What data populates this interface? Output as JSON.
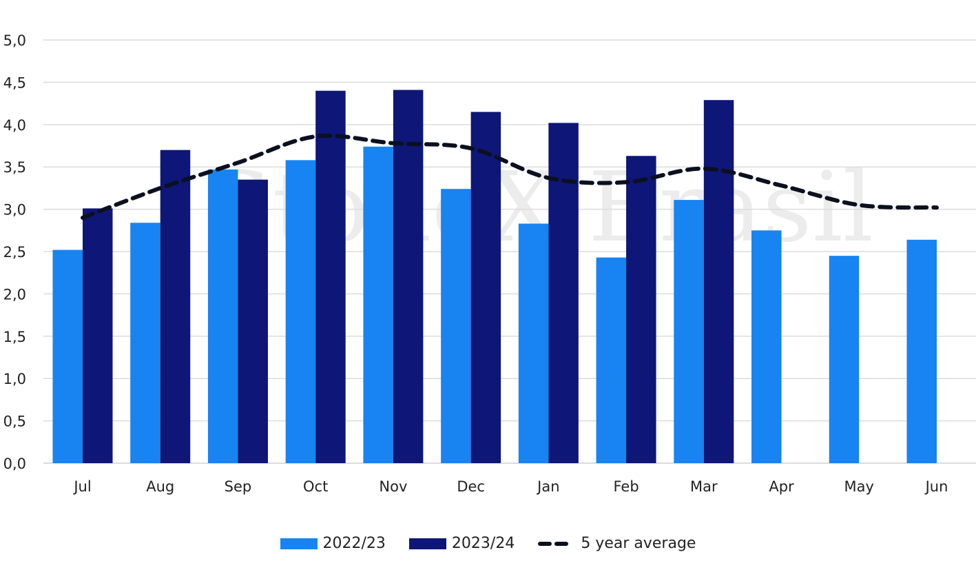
{
  "chart_data": {
    "type": "bar",
    "categories": [
      "Jul",
      "Aug",
      "Sep",
      "Oct",
      "Nov",
      "Dec",
      "Jan",
      "Feb",
      "Mar",
      "Apr",
      "May",
      "Jun"
    ],
    "series": [
      {
        "name": "2022/23",
        "kind": "bar",
        "color": "#1784F1",
        "values": [
          2.52,
          2.84,
          3.47,
          3.58,
          3.74,
          3.24,
          2.83,
          2.43,
          3.11,
          2.75,
          2.45,
          2.64
        ]
      },
      {
        "name": "2023/24",
        "kind": "bar",
        "color": "#0E1677",
        "values": [
          3.01,
          3.7,
          3.35,
          4.4,
          4.41,
          4.15,
          4.02,
          3.63,
          4.29,
          null,
          null,
          null
        ]
      },
      {
        "name": "5 year average",
        "kind": "line",
        "style": "dashed",
        "color": "#0B1020",
        "values": [
          2.9,
          3.25,
          3.55,
          3.86,
          3.78,
          3.72,
          3.37,
          3.32,
          3.48,
          3.28,
          3.05,
          3.02
        ]
      }
    ],
    "ylim": [
      0,
      5
    ],
    "yticks": [
      "0,0",
      "0,5",
      "1,0",
      "1,5",
      "2,0",
      "2,5",
      "3,0",
      "3,5",
      "4,0",
      "4,5",
      "5,0"
    ],
    "grid": true,
    "legend_position": "bottom",
    "title": "",
    "xlabel": "",
    "ylabel": ""
  },
  "watermark": "StoneX Brasil"
}
